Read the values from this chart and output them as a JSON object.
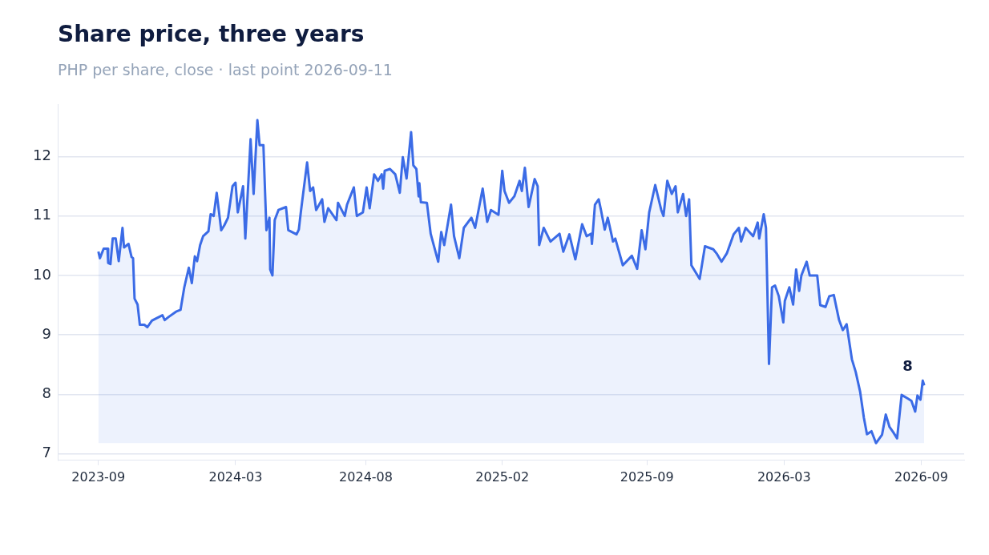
{
  "chart_data": {
    "type": "area",
    "title": "Share price, three years",
    "subtitle": "PHP per share, close · last point 2026-09-11",
    "color": "#3b6be6",
    "x": [
      "2023-09-11",
      "2023-09-13",
      "2023-09-18",
      "2023-09-23",
      "2023-09-24",
      "2023-09-27",
      "2023-09-30",
      "2023-10-04",
      "2023-10-08",
      "2023-10-13",
      "2023-10-15",
      "2023-10-21",
      "2023-10-25",
      "2023-10-27",
      "2023-10-29",
      "2023-11-02",
      "2023-11-05",
      "2023-11-11",
      "2023-11-15",
      "2023-11-21",
      "2023-11-24",
      "2023-12-05",
      "2023-12-08",
      "2023-12-13",
      "2023-12-23",
      "2023-12-29",
      "2024-01-03",
      "2024-01-09",
      "2024-01-13",
      "2024-01-17",
      "2024-01-20",
      "2024-01-24",
      "2024-01-28",
      "2024-02-04",
      "2024-02-07",
      "2024-02-11",
      "2024-02-15",
      "2024-02-21",
      "2024-02-25",
      "2024-03-01",
      "2024-03-07",
      "2024-03-11",
      "2024-03-14",
      "2024-03-21",
      "2024-03-24",
      "2024-03-31",
      "2024-04-04",
      "2024-04-09",
      "2024-04-12",
      "2024-04-17",
      "2024-04-21",
      "2024-04-25",
      "2024-04-26",
      "2024-04-29",
      "2024-05-02",
      "2024-05-07",
      "2024-05-17",
      "2024-05-20",
      "2024-05-31",
      "2024-06-03",
      "2024-06-06",
      "2024-06-14",
      "2024-06-18",
      "2024-06-22",
      "2024-06-26",
      "2024-07-04",
      "2024-07-07",
      "2024-07-12",
      "2024-07-23",
      "2024-07-25",
      "2024-08-03",
      "2024-08-06",
      "2024-08-15",
      "2024-08-19",
      "2024-08-27",
      "2024-09-01",
      "2024-09-05",
      "2024-09-11",
      "2024-09-16",
      "2024-09-21",
      "2024-09-23",
      "2024-09-25",
      "2024-10-02",
      "2024-10-09",
      "2024-10-15",
      "2024-10-19",
      "2024-10-24",
      "2024-10-30",
      "2024-11-02",
      "2024-11-06",
      "2024-11-09",
      "2024-11-10",
      "2024-11-12",
      "2024-11-20",
      "2024-11-25",
      "2024-12-05",
      "2024-12-09",
      "2024-12-13",
      "2024-12-22",
      "2024-12-26",
      "2025-01-02",
      "2025-01-08",
      "2025-01-18",
      "2025-01-23",
      "2025-02-02",
      "2025-02-08",
      "2025-02-13",
      "2025-02-23",
      "2025-02-28",
      "2025-03-03",
      "2025-03-09",
      "2025-03-16",
      "2025-03-23",
      "2025-03-26",
      "2025-03-30",
      "2025-04-04",
      "2025-04-12",
      "2025-04-16",
      "2025-04-18",
      "2025-04-24",
      "2025-05-03",
      "2025-05-15",
      "2025-05-20",
      "2025-05-28",
      "2025-06-05",
      "2025-06-14",
      "2025-06-20",
      "2025-06-26",
      "2025-06-27",
      "2025-07-01",
      "2025-07-06",
      "2025-07-09",
      "2025-07-14",
      "2025-07-18",
      "2025-07-25",
      "2025-07-28",
      "2025-08-07",
      "2025-08-19",
      "2025-08-26",
      "2025-09-01",
      "2025-09-06",
      "2025-09-11",
      "2025-09-19",
      "2025-09-27",
      "2025-09-30",
      "2025-10-05",
      "2025-10-11",
      "2025-10-16",
      "2025-10-19",
      "2025-10-26",
      "2025-10-30",
      "2025-11-03",
      "2025-11-06",
      "2025-11-17",
      "2025-11-24",
      "2025-12-05",
      "2025-12-10",
      "2025-12-16",
      "2025-12-23",
      "2026-01-01",
      "2026-01-08",
      "2026-01-11",
      "2026-01-17",
      "2026-01-27",
      "2026-02-02",
      "2026-02-04",
      "2026-02-10",
      "2026-02-13",
      "2026-02-17",
      "2026-02-21",
      "2026-02-25",
      "2026-03-02",
      "2026-03-08",
      "2026-03-10",
      "2026-03-16",
      "2026-03-21",
      "2026-03-25",
      "2026-03-29",
      "2026-04-01",
      "2026-04-08",
      "2026-04-12",
      "2026-04-22",
      "2026-04-26",
      "2026-05-03",
      "2026-05-08",
      "2026-05-14",
      "2026-05-21",
      "2026-05-26",
      "2026-05-31",
      "2026-06-07",
      "2026-06-12",
      "2026-06-18",
      "2026-06-23",
      "2026-06-27",
      "2026-07-03",
      "2026-07-09",
      "2026-07-17",
      "2026-07-22",
      "2026-07-27",
      "2026-08-01",
      "2026-08-06",
      "2026-08-12",
      "2026-08-20",
      "2026-08-25",
      "2026-08-30",
      "2026-09-02",
      "2026-09-06",
      "2026-09-09",
      "2026-09-11"
    ],
    "values": [
      10.4,
      10.29,
      10.45,
      10.45,
      10.21,
      10.19,
      10.62,
      10.62,
      10.24,
      10.8,
      10.47,
      10.53,
      10.31,
      10.29,
      9.61,
      9.51,
      9.17,
      9.17,
      9.13,
      9.24,
      9.26,
      9.33,
      9.25,
      9.3,
      9.39,
      9.42,
      9.8,
      10.13,
      9.87,
      10.32,
      10.24,
      10.51,
      10.66,
      10.74,
      11.03,
      11.0,
      11.39,
      10.76,
      10.84,
      10.97,
      11.5,
      11.56,
      11.06,
      11.5,
      10.62,
      12.29,
      11.37,
      12.61,
      12.19,
      12.19,
      10.76,
      10.97,
      10.1,
      10.0,
      10.93,
      11.1,
      11.15,
      10.76,
      10.69,
      10.77,
      11.1,
      11.9,
      11.42,
      11.48,
      11.1,
      11.28,
      10.9,
      11.13,
      10.93,
      11.22,
      11.0,
      11.19,
      11.48,
      11.0,
      11.06,
      11.48,
      11.13,
      11.7,
      11.59,
      11.7,
      11.46,
      11.76,
      11.79,
      11.7,
      11.39,
      11.99,
      11.63,
      12.41,
      11.85,
      11.79,
      11.33,
      11.55,
      11.23,
      11.22,
      10.7,
      10.23,
      10.73,
      10.51,
      11.19,
      10.66,
      10.29,
      10.8,
      10.97,
      10.8,
      11.46,
      10.9,
      11.1,
      11.02,
      11.76,
      11.42,
      11.22,
      11.33,
      11.59,
      11.42,
      11.81,
      11.15,
      11.62,
      11.5,
      10.51,
      10.8,
      10.57,
      10.7,
      10.4,
      10.69,
      10.27,
      10.86,
      10.66,
      10.7,
      10.53,
      11.19,
      11.28,
      11.1,
      10.77,
      10.97,
      10.57,
      10.62,
      10.17,
      10.33,
      10.11,
      10.76,
      10.44,
      11.06,
      11.52,
      11.1,
      11.0,
      11.59,
      11.37,
      11.5,
      11.06,
      11.37,
      11.0,
      11.28,
      10.17,
      9.94,
      10.49,
      10.44,
      10.36,
      10.23,
      10.37,
      10.69,
      10.8,
      10.57,
      10.8,
      10.66,
      10.89,
      10.62,
      11.03,
      10.8,
      8.51,
      9.8,
      9.83,
      9.65,
      9.21,
      9.57,
      9.8,
      9.51,
      10.1,
      9.74,
      10.0,
      10.23,
      10.0,
      10.0,
      9.5,
      9.47,
      9.65,
      9.67,
      9.25,
      9.08,
      9.18,
      8.59,
      8.38,
      8.04,
      7.6,
      7.33,
      7.38,
      7.18,
      7.32,
      7.66,
      7.45,
      7.36,
      7.26,
      7.99,
      7.93,
      7.89,
      7.71,
      7.98,
      7.91,
      8.23,
      8.15
    ],
    "xlim": [
      "2023-07-19",
      "2026-11-03"
    ],
    "xticks": [
      {
        "value": "2023-09-11",
        "label": "2023-09"
      },
      {
        "value": "2024-03-11",
        "label": "2024-03"
      },
      {
        "value": "2024-08-31",
        "label": "2024-08"
      },
      {
        "value": "2025-02-28",
        "label": "2025-02"
      },
      {
        "value": "2025-09-08",
        "label": "2025-09"
      },
      {
        "value": "2026-03-09",
        "label": "2026-03"
      },
      {
        "value": "2026-09-07",
        "label": "2026-09"
      }
    ],
    "ylim": [
      6.89,
      12.87
    ],
    "yticks": [
      7,
      8,
      9,
      10,
      11,
      12
    ],
    "grid": "y",
    "legend": false,
    "marker": "none",
    "line_style": "solid",
    "annotations": [
      {
        "text": "8",
        "x": "2026-08-20",
        "y": 7.93
      }
    ]
  }
}
